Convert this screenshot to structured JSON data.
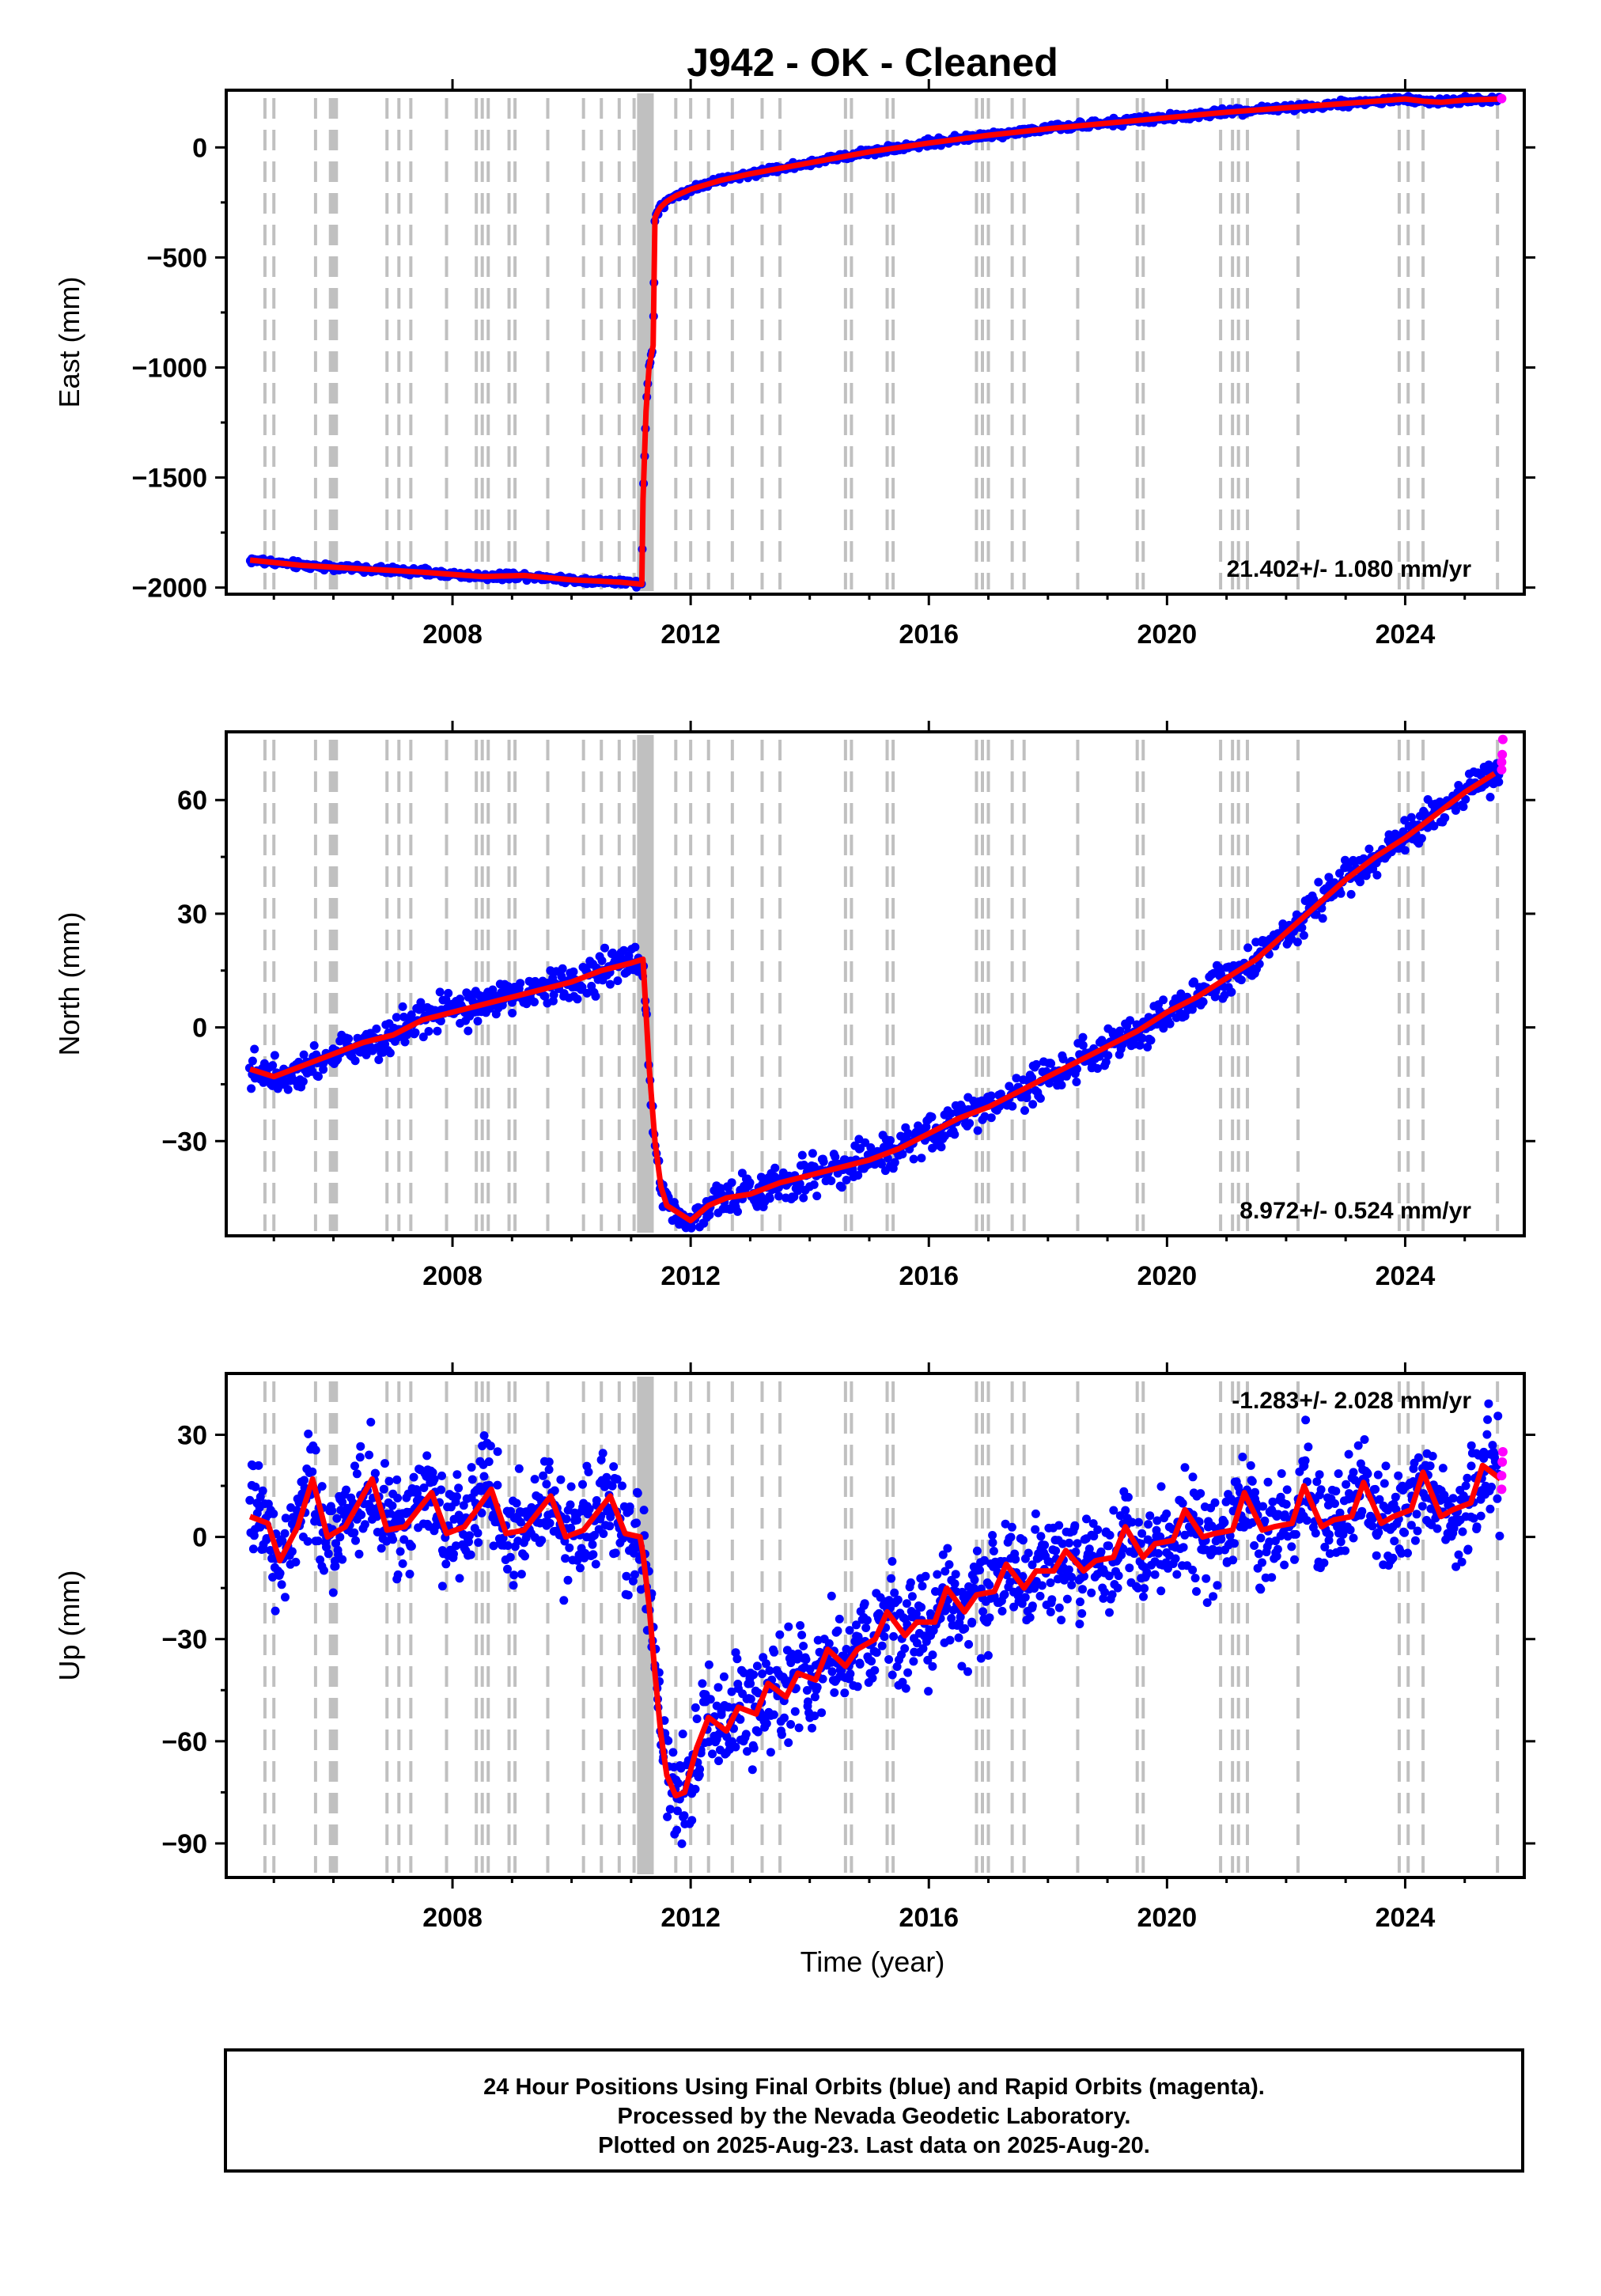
{
  "title": "J942  - OK - Cleaned",
  "xlabel": "Time (year)",
  "colors": {
    "final": "#0000ff",
    "rapid": "#ff00ff",
    "model": "#ff0000",
    "event": "#c0c0c0"
  },
  "footer": [
    "24 Hour Positions Using Final Orbits (blue) and Rapid Orbits (magenta).",
    "Processed by the Nevada Geodetic Laboratory.",
    "Plotted on 2025-Aug-23. Last data on 2025-Aug-20."
  ],
  "chart_data": [
    {
      "type": "scatter",
      "ylabel": "East (mm)",
      "rate_label": "21.402+/- 1.080 mm/yr",
      "xlim": [
        2004.2,
        2026.0
      ],
      "ylim": [
        -2030,
        260
      ],
      "xticks": [
        2008,
        2012,
        2016,
        2020,
        2024
      ],
      "yticks": [
        -2000,
        -1500,
        -1000,
        -500,
        0
      ],
      "series": [
        {
          "label": "fitted",
          "x": [
            2004.6,
            2005.5,
            2006.5,
            2007.5,
            2008.5,
            2009.2,
            2010.0,
            2010.8,
            2011.18,
            2011.2,
            2011.25,
            2011.3,
            2011.37,
            2011.4,
            2011.45,
            2011.5,
            2011.6,
            2011.75,
            2012.0,
            2012.5,
            2013.0,
            2014.0,
            2015.0,
            2016.0,
            2017.0,
            2018.0,
            2019.0,
            2020.0,
            2021.0,
            2022.0,
            2023.0,
            2024.0,
            2024.3,
            2024.6,
            2025.0,
            2025.6
          ],
          "y": [
            -1875,
            -1900,
            -1915,
            -1930,
            -1950,
            -1945,
            -1965,
            -1975,
            -1985,
            -1600,
            -1200,
            -1000,
            -900,
            -320,
            -290,
            -270,
            -245,
            -220,
            -190,
            -150,
            -120,
            -70,
            -20,
            20,
            55,
            85,
            110,
            135,
            160,
            180,
            200,
            220,
            210,
            205,
            215,
            220
          ]
        }
      ],
      "rapid": [
        {
          "x": 2025.62,
          "y": 222
        }
      ],
      "events": [
        2004.85,
        2005.0,
        2005.7,
        2005.95,
        2006.0,
        2006.05,
        2006.9,
        2007.1,
        2007.3,
        2007.9,
        2008.4,
        2008.5,
        2008.6,
        2008.95,
        2009.05,
        2009.6,
        2010.2,
        2010.5,
        2010.8,
        2011.05
      ]
    },
    {
      "type": "scatter",
      "ylabel": "North (mm)",
      "rate_label": "8.972+/- 0.524 mm/yr",
      "xlim": [
        2004.2,
        2026.0
      ],
      "ylim": [
        -55,
        78
      ],
      "xticks": [
        2008,
        2012,
        2016,
        2020,
        2024
      ],
      "yticks": [
        -30,
        0,
        30,
        60
      ],
      "series": [
        {
          "label": "fitted",
          "x": [
            2004.6,
            2005.0,
            2005.5,
            2006.0,
            2006.5,
            2007.0,
            2007.5,
            2008.0,
            2008.5,
            2009.0,
            2009.5,
            2010.0,
            2010.5,
            2011.0,
            2011.2,
            2011.3,
            2011.35,
            2011.4,
            2011.5,
            2011.6,
            2011.8,
            2012.0,
            2012.3,
            2012.6,
            2013.0,
            2013.5,
            2014.0,
            2014.5,
            2015.0,
            2015.5,
            2016.0,
            2016.5,
            2017.0,
            2017.5,
            2018.0,
            2018.5,
            2019.0,
            2019.5,
            2020.0,
            2020.5,
            2021.0,
            2021.5,
            2022.0,
            2022.5,
            2023.0,
            2023.5,
            2024.0,
            2024.5,
            2025.0,
            2025.5
          ],
          "y": [
            -11,
            -13,
            -10,
            -7,
            -4,
            -2,
            2,
            4,
            6,
            8,
            10,
            12,
            15,
            17,
            18,
            -10,
            -20,
            -30,
            -42,
            -47,
            -49,
            -51,
            -47,
            -45,
            -44,
            -41,
            -39,
            -37,
            -35,
            -32,
            -28,
            -24,
            -21,
            -17,
            -13,
            -9,
            -5,
            -1,
            4,
            8,
            13,
            18,
            25,
            32,
            39,
            45,
            50,
            56,
            62,
            67
          ]
        }
      ],
      "rapid": [
        {
          "x": 2025.62,
          "y": 68
        },
        {
          "x": 2025.62,
          "y": 70
        },
        {
          "x": 2025.63,
          "y": 72
        },
        {
          "x": 2025.64,
          "y": 76
        }
      ],
      "events": [
        2004.85,
        2005.0,
        2005.7,
        2005.95,
        2006.0,
        2006.05,
        2006.9,
        2007.1,
        2007.3,
        2007.9,
        2008.4,
        2008.5,
        2008.6,
        2008.95,
        2009.05,
        2009.6,
        2010.2,
        2010.5,
        2010.8,
        2011.05
      ]
    },
    {
      "type": "scatter",
      "ylabel": "Up (mm)",
      "rate_label": "-1.283+/- 2.028 mm/yr",
      "xlim": [
        2004.2,
        2026.0
      ],
      "ylim": [
        -100,
        48
      ],
      "xticks": [
        2008,
        2012,
        2016,
        2020,
        2024
      ],
      "yticks": [
        -90,
        -60,
        -30,
        0,
        30
      ],
      "series": [
        {
          "label": "fitted",
          "x": [
            2004.6,
            2004.9,
            2005.1,
            2005.4,
            2005.65,
            2005.9,
            2006.2,
            2006.65,
            2006.9,
            2007.2,
            2007.65,
            2007.9,
            2008.2,
            2008.65,
            2008.9,
            2009.2,
            2009.65,
            2009.9,
            2010.2,
            2010.65,
            2010.9,
            2011.15,
            2011.2,
            2011.3,
            2011.4,
            2011.5,
            2011.6,
            2011.75,
            2011.9,
            2012.1,
            2012.3,
            2012.6,
            2012.8,
            2013.1,
            2013.3,
            2013.6,
            2013.8,
            2014.1,
            2014.3,
            2014.6,
            2014.8,
            2015.1,
            2015.3,
            2015.6,
            2015.8,
            2016.1,
            2016.3,
            2016.6,
            2016.8,
            2017.1,
            2017.3,
            2017.6,
            2017.8,
            2018.1,
            2018.3,
            2018.6,
            2018.8,
            2019.1,
            2019.3,
            2019.6,
            2019.8,
            2020.1,
            2020.3,
            2020.6,
            2020.8,
            2021.1,
            2021.3,
            2021.6,
            2021.8,
            2022.1,
            2022.3,
            2022.6,
            2022.8,
            2023.1,
            2023.3,
            2023.6,
            2023.8,
            2024.1,
            2024.3,
            2024.6,
            2024.8,
            2025.1,
            2025.3,
            2025.6
          ],
          "y": [
            6,
            4,
            -7,
            3,
            17,
            0,
            3,
            17,
            2,
            3,
            13,
            1,
            3,
            14,
            1,
            2,
            12,
            0,
            2,
            12,
            1,
            0,
            -5,
            -20,
            -40,
            -58,
            -70,
            -76,
            -75,
            -62,
            -53,
            -57,
            -50,
            -52,
            -43,
            -47,
            -40,
            -42,
            -33,
            -38,
            -33,
            -30,
            -22,
            -29,
            -25,
            -25,
            -15,
            -22,
            -17,
            -16,
            -8,
            -15,
            -10,
            -10,
            -4,
            -10,
            -7,
            -6,
            3,
            -6,
            -2,
            -1,
            8,
            0,
            1,
            2,
            13,
            2,
            3,
            4,
            15,
            3,
            5,
            6,
            16,
            4,
            6,
            8,
            19,
            6,
            8,
            10,
            21,
            17
          ]
        }
      ],
      "rapid": [
        {
          "x": 2025.62,
          "y": 14
        },
        {
          "x": 2025.62,
          "y": 18
        },
        {
          "x": 2025.63,
          "y": 22
        },
        {
          "x": 2025.64,
          "y": 25
        }
      ],
      "events": [
        2004.85,
        2005.0,
        2005.7,
        2005.95,
        2006.0,
        2006.05,
        2006.9,
        2007.1,
        2007.3,
        2007.9,
        2008.4,
        2008.5,
        2008.6,
        2008.95,
        2009.05,
        2009.6,
        2010.2,
        2010.5,
        2010.8,
        2011.05
      ]
    }
  ]
}
